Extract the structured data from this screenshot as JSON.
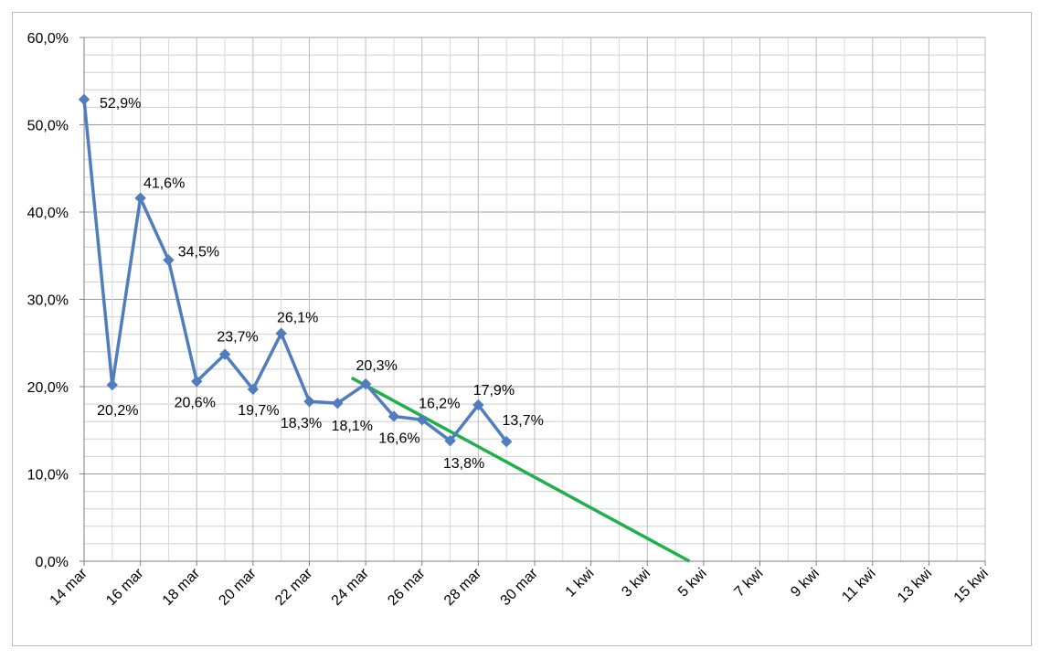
{
  "chart_data": {
    "type": "line",
    "title": "",
    "xlabel": "",
    "ylabel": "",
    "ylim": [
      0,
      60
    ],
    "y_ticks": [
      "0,0%",
      "10,0%",
      "20,0%",
      "30,0%",
      "40,0%",
      "50,0%",
      "60,0%"
    ],
    "x_tick_labels": [
      "14 mar",
      "16 mar",
      "18 mar",
      "20 mar",
      "22 mar",
      "24 mar",
      "26 mar",
      "28 mar",
      "30 mar",
      "1 kwi",
      "3 kwi",
      "5 kwi",
      "7 kwi",
      "9 kwi",
      "11 kwi",
      "13 kwi",
      "15 kwi"
    ],
    "x_range": [
      "14 mar",
      "15 kwi"
    ],
    "grid": true,
    "legend": "none",
    "series": [
      {
        "color": "#4f7dbd",
        "marker": "diamond",
        "x": [
          "14 mar",
          "15 mar",
          "16 mar",
          "17 mar",
          "18 mar",
          "19 mar",
          "20 mar",
          "21 mar",
          "22 mar",
          "23 mar",
          "24 mar",
          "25 mar",
          "26 mar",
          "27 mar",
          "28 mar",
          "29 mar"
        ],
        "values": [
          52.9,
          20.2,
          41.6,
          34.5,
          20.6,
          23.7,
          19.7,
          26.1,
          18.3,
          18.1,
          20.3,
          16.6,
          16.2,
          13.8,
          17.9,
          13.7
        ],
        "labels": [
          "52,9%",
          "20,2%",
          "41,6%",
          "34,5%",
          "20,6%",
          "23,7%",
          "19,7%",
          "26,1%",
          "18,3%",
          "18,1%",
          "20,3%",
          "16,6%",
          "16,2%",
          "13,8%",
          "17,9%",
          "13,7%"
        ]
      }
    ],
    "annotations": [
      {
        "type": "trend_line",
        "color": "#1fb04b",
        "from": {
          "x": "23,5 mar",
          "y": 21.0
        },
        "to": {
          "x": "4,5 kwi",
          "y": 0.0
        }
      }
    ]
  }
}
